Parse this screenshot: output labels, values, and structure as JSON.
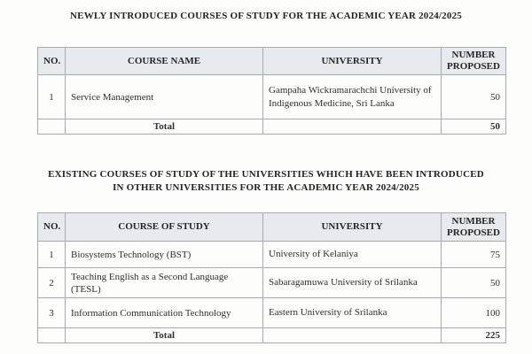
{
  "colors": {
    "header_bg": "#e7eaee",
    "border": "#a6abaf",
    "text": "#2f2f31",
    "page_bg": "#fdfdfc"
  },
  "sections": [
    {
      "title": "NEWLY INTRODUCED COURSES OF STUDY FOR THE ACADEMIC YEAR 2024/2025",
      "table": {
        "headers": [
          "NO.",
          "COURSE NAME",
          "UNIVERSITY",
          "NUMBER PROPOSED"
        ],
        "rows": [
          {
            "no": "1",
            "course": "Service Management",
            "university": "Gampaha Wickramarachchi University of Indigenous Medicine, Sri Lanka",
            "number": "50"
          }
        ],
        "total_label": "Total",
        "total_value": "50"
      }
    },
    {
      "title": "EXISTING COURSES OF STUDY OF THE UNIVERSITIES WHICH HAVE BEEN INTRODUCED IN OTHER UNIVERSITIES FOR THE ACADEMIC YEAR 2024/2025",
      "table": {
        "headers": [
          "NO.",
          "COURSE OF STUDY",
          "UNIVERSITY",
          "NUMBER PROPOSED"
        ],
        "rows": [
          {
            "no": "1",
            "course": "Biosystems Technology (BST)",
            "university": "University of Kelaniya",
            "number": "75"
          },
          {
            "no": "2",
            "course": "Teaching English as a Second Language (TESL)",
            "university": "Sabaragamuwa University of Srilanka",
            "number": "50"
          },
          {
            "no": "3",
            "course": "Information Communication Technology",
            "university": "Eastern University of Srilanka",
            "number": "100"
          }
        ],
        "total_label": "Total",
        "total_value": "225"
      }
    }
  ]
}
